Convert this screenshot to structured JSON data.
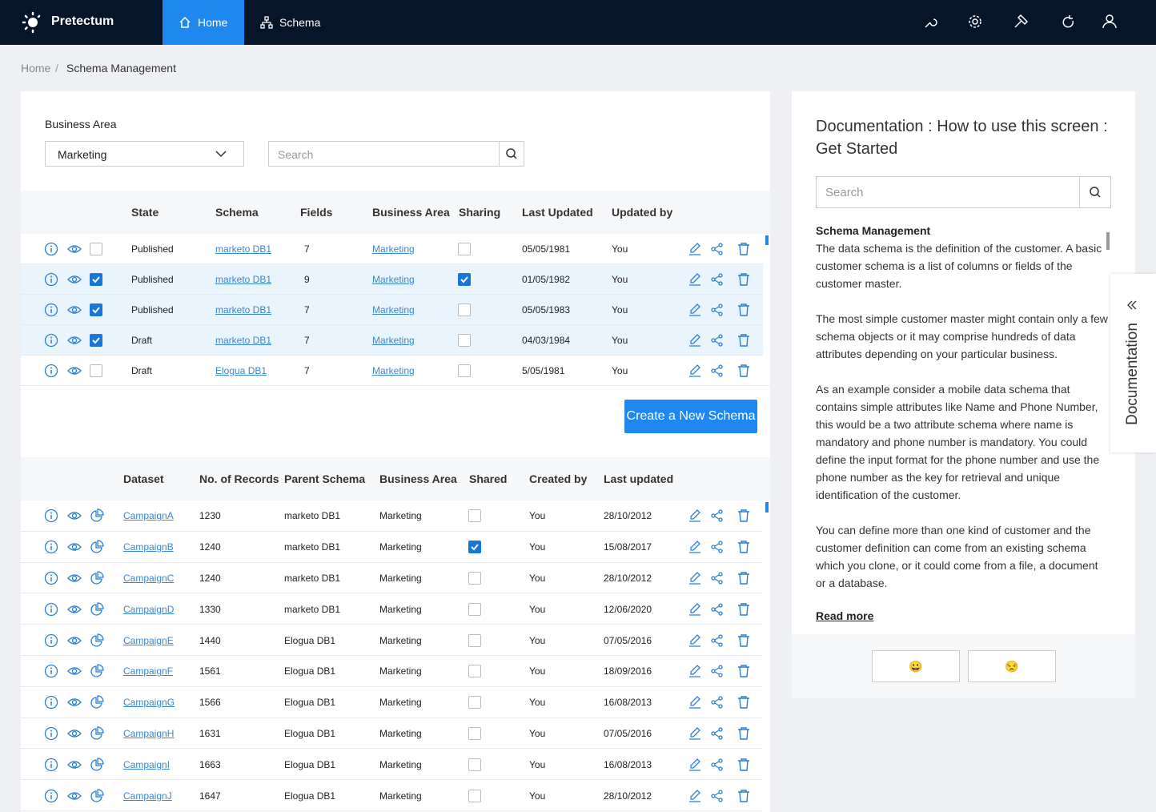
{
  "nav": {
    "brand": "Pretectum",
    "tabs": [
      "Home",
      "Schema"
    ],
    "active_tab": 0
  },
  "breadcrumb": [
    "Home",
    "Schema Management"
  ],
  "filter": {
    "label": "Business Area",
    "selected": "Marketing",
    "search_placeholder": "Search"
  },
  "schema_table": {
    "headers": [
      "State",
      "Schema",
      "Fields",
      "Business Area",
      "Sharing",
      "Last Updated",
      "Updated by"
    ],
    "rows": [
      {
        "selected": false,
        "state": "Published",
        "schema": "marketo DB1",
        "fields": "7",
        "business_area": "Marketing",
        "sharing": false,
        "last_updated": "05/05/1981",
        "updated_by": "You"
      },
      {
        "selected": true,
        "state": "Published",
        "schema": "marketo DB1",
        "fields": "9",
        "business_area": "Marketing",
        "sharing": true,
        "last_updated": "01/05/1982",
        "updated_by": "You"
      },
      {
        "selected": true,
        "state": "Published",
        "schema": "marketo DB1",
        "fields": "7",
        "business_area": "Marketing",
        "sharing": false,
        "last_updated": "05/05/1983",
        "updated_by": "You"
      },
      {
        "selected": true,
        "state": "Draft",
        "schema": "marketo DB1",
        "fields": "7",
        "business_area": "Marketing",
        "sharing": false,
        "last_updated": "04/03/1984",
        "updated_by": "You"
      },
      {
        "selected": false,
        "state": "Draft",
        "schema": "Elogua DB1",
        "fields": "7",
        "business_area": "Marketing",
        "sharing": false,
        "last_updated": "5/05/1981",
        "updated_by": "You"
      }
    ]
  },
  "create_button": "Create a New Schema",
  "dataset_table": {
    "headers": [
      "Dataset",
      "No. of Records",
      "Parent Schema",
      "Business Area",
      "Shared",
      "Created by",
      "Last updated"
    ],
    "rows": [
      {
        "dataset": "CampaignA",
        "records": "1230",
        "parent_schema": "marketo DB1",
        "business_area": "Marketing",
        "shared": false,
        "created_by": "You",
        "last_updated": "28/10/2012"
      },
      {
        "dataset": "CampaignB",
        "records": "1240",
        "parent_schema": "marketo DB1",
        "business_area": "Marketing",
        "shared": true,
        "created_by": "You",
        "last_updated": "15/08/2017"
      },
      {
        "dataset": "CampaignC",
        "records": "1240",
        "parent_schema": "marketo DB1",
        "business_area": "Marketing",
        "shared": false,
        "created_by": "You",
        "last_updated": "28/10/2012"
      },
      {
        "dataset": "CampaignD",
        "records": "1330",
        "parent_schema": "marketo DB1",
        "business_area": "Marketing",
        "shared": false,
        "created_by": "You",
        "last_updated": "12/06/2020"
      },
      {
        "dataset": "CampaignE",
        "records": "1440",
        "parent_schema": "Elogua DB1",
        "business_area": "Marketing",
        "shared": false,
        "created_by": "You",
        "last_updated": "07/05/2016"
      },
      {
        "dataset": "CampaignF",
        "records": "1561",
        "parent_schema": "Elogua DB1",
        "business_area": "Marketing",
        "shared": false,
        "created_by": "You",
        "last_updated": "18/09/2016"
      },
      {
        "dataset": "CampaignG",
        "records": "1566",
        "parent_schema": "Elogua DB1",
        "business_area": "Marketing",
        "shared": false,
        "created_by": "You",
        "last_updated": "16/08/2013"
      },
      {
        "dataset": "CampaignH",
        "records": "1631",
        "parent_schema": "Elogua DB1",
        "business_area": "Marketing",
        "shared": false,
        "created_by": "You",
        "last_updated": "07/05/2016"
      },
      {
        "dataset": "CampaignI",
        "records": "1663",
        "parent_schema": "Elogua DB1",
        "business_area": "Marketing",
        "shared": false,
        "created_by": "You",
        "last_updated": "16/08/2013"
      },
      {
        "dataset": "CampaignJ",
        "records": "1647",
        "parent_schema": "Elogua DB1",
        "business_area": "Marketing",
        "shared": false,
        "created_by": "You",
        "last_updated": "28/10/2012"
      }
    ]
  },
  "documentation": {
    "title": "Documentation : How to use this screen : Get Started",
    "search_placeholder": "Search",
    "heading": "Schema Management",
    "paragraphs": [
      "The data schema is the definition of the customer.  A basic customer schema  is a list of columns or fields of the customer master.",
      "The most simple customer master might contain only a few schema objects or it may comprise hundreds of data attributes depending on your particular business.",
      "As an example consider a mobile data schema that contains simple attributes like Name and Phone Number, this would be a two attribute schema where name is mandatory and phone number is mandatory. You could define the input format for the phone number and use the phone number as the key for retrieval and unique identification of the customer.",
      "You can define more than one kind of customer and the customer definition can come from an existing schema which you clone, or it could come from a file, a document  or a database."
    ],
    "read_more": "Read more",
    "feedback": [
      "😀",
      "😒"
    ],
    "side_tab": "Documentation"
  }
}
